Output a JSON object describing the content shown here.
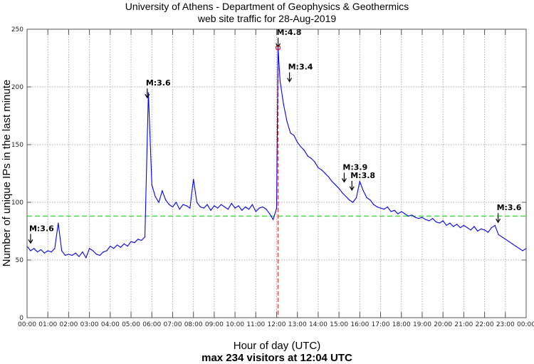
{
  "chart_data": {
    "type": "line",
    "title": "University of Athens - Department of Geophysics & Geothermics",
    "subtitle": "web site traffic for 28-Aug-2019",
    "xlabel": "Hour of day (UTC)",
    "xlabel2": "max 234 visitors at 12:04 UTC",
    "ylabel": "Number of unique IPs in the last minute",
    "xlim_hours": [
      0,
      24
    ],
    "ylim": [
      0,
      250
    ],
    "yticks": [
      0,
      50,
      100,
      150,
      200,
      250
    ],
    "xtick_labels": [
      "00:00",
      "01:00",
      "02:00",
      "03:00",
      "04:00",
      "05:00",
      "06:00",
      "07:00",
      "08:00",
      "09:00",
      "10:00",
      "11:00",
      "12:00",
      "13:00",
      "14:00",
      "15:00",
      "16:00",
      "17:00",
      "18:00",
      "19:00",
      "20:00",
      "21:00",
      "22:00",
      "23:00",
      "00:00"
    ],
    "grid": true,
    "series": [
      {
        "name": "visitors",
        "color": "#0000ff",
        "step_minutes": 10,
        "values": [
          62,
          58,
          60,
          57,
          59,
          56,
          58,
          57,
          60,
          82,
          58,
          54,
          55,
          54,
          56,
          53,
          57,
          52,
          60,
          58,
          55,
          54,
          57,
          58,
          62,
          60,
          63,
          61,
          64,
          62,
          66,
          65,
          68,
          67,
          70,
          195,
          115,
          105,
          100,
          110,
          102,
          98,
          96,
          100,
          94,
          98,
          97,
          95,
          120,
          100,
          96,
          95,
          98,
          93,
          97,
          95,
          98,
          96,
          94,
          99,
          95,
          97,
          93,
          96,
          94,
          98,
          92,
          95,
          96,
          94,
          90,
          85,
          95,
          205,
          185,
          170,
          160,
          158,
          152,
          148,
          145,
          140,
          138,
          135,
          130,
          128,
          125,
          122,
          118,
          115,
          112,
          108,
          105,
          102,
          100,
          104,
          118,
          110,
          104,
          102,
          98,
          96,
          95,
          94,
          96,
          92,
          93,
          90,
          92,
          90,
          88,
          89,
          87,
          86,
          87,
          85,
          84,
          86,
          83,
          82,
          84,
          80,
          82,
          79,
          81,
          78,
          80,
          78,
          76,
          79,
          75,
          77,
          76,
          74,
          78,
          80,
          72,
          70,
          68,
          66,
          64,
          62,
          60,
          58,
          60
        ]
      }
    ],
    "peak": {
      "hour": 12.067,
      "value": 234,
      "label": "12:04"
    },
    "mean_line": {
      "value": 88,
      "color": "#33dd33"
    },
    "peak_line_color": "#ff3333",
    "annotations": [
      {
        "text": "M:3.6",
        "hour": 0.17,
        "value": 64
      },
      {
        "text": "M:3.6",
        "hour": 5.78,
        "value": 190
      },
      {
        "text": "M:4.8",
        "hour": 12.07,
        "value": 234
      },
      {
        "text": "M:3.4",
        "hour": 12.62,
        "value": 204
      },
      {
        "text": "M:3.9",
        "hour": 15.25,
        "value": 117
      },
      {
        "text": "M:3.8",
        "hour": 15.62,
        "value": 110
      },
      {
        "text": "M:3.6",
        "hour": 22.65,
        "value": 82
      }
    ]
  }
}
